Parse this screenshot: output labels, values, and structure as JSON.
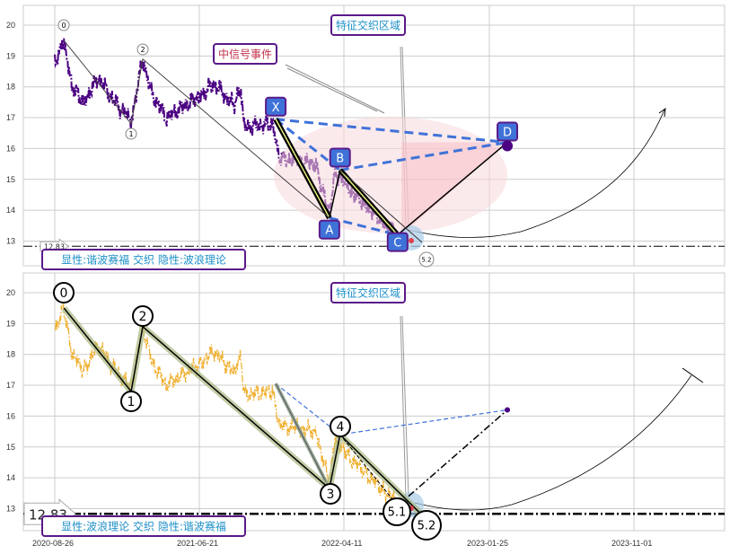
{
  "colors": {
    "top_series": "#4b0082",
    "bottom_series": "#f0b030",
    "pattern_blue": "#3f72d8",
    "label_border": "#5a1a8a",
    "label_text": "#1e90c8",
    "event_text": "#c0304a"
  },
  "chart_data": [
    {
      "type": "line",
      "panel": "top",
      "x_unit": "days since 2020-08-26",
      "ylim": [
        12.2,
        20.7
      ],
      "yticks": [
        13,
        14,
        15,
        16,
        17,
        18,
        19,
        20
      ],
      "grid": true,
      "series_waypoints": [
        [
          0,
          18.8
        ],
        [
          19,
          19.5
        ],
        [
          35,
          18.0
        ],
        [
          60,
          17.5
        ],
        [
          90,
          18.3
        ],
        [
          120,
          17.6
        ],
        [
          158,
          16.9
        ],
        [
          182,
          18.9
        ],
        [
          200,
          17.8
        ],
        [
          230,
          17.0
        ],
        [
          260,
          17.3
        ],
        [
          300,
          17.7
        ],
        [
          330,
          18.1
        ],
        [
          370,
          17.4
        ],
        [
          385,
          17.9
        ],
        [
          392,
          16.7
        ],
        [
          450,
          16.8
        ],
        [
          465,
          15.7
        ],
        [
          500,
          15.6
        ],
        [
          540,
          15.5
        ],
        [
          568,
          13.8
        ],
        [
          580,
          15.3
        ],
        [
          600,
          14.8
        ],
        [
          640,
          14.2
        ],
        [
          680,
          13.6
        ],
        [
          709,
          13.2
        ]
      ],
      "wave_points": [
        {
          "label": "0",
          "x": 19,
          "y": 19.5
        },
        {
          "label": "1",
          "x": 158,
          "y": 16.8
        },
        {
          "label": "2",
          "x": 182,
          "y": 18.9
        },
        {
          "label": "5.2",
          "x": 759,
          "y": 12.85
        }
      ],
      "harmonic_points": [
        {
          "label": "X",
          "x": 457,
          "y": 16.95
        },
        {
          "label": "A",
          "x": 568,
          "y": 13.75
        },
        {
          "label": "B",
          "x": 590,
          "y": 15.3
        },
        {
          "label": "C",
          "x": 709,
          "y": 13.2
        },
        {
          "label": "D",
          "x": 936,
          "y": 16.2
        }
      ],
      "support_level": 12.83,
      "support_label": "12.83",
      "annotations": {
        "zone": "特征交织区域",
        "event": "中信号事件",
        "legend": "显性:谐波赛福 交织 隐性:波浪理论"
      }
    },
    {
      "type": "line",
      "panel": "bottom",
      "x_unit": "days since 2020-08-26",
      "ylim": [
        12.2,
        20.7
      ],
      "yticks": [
        13,
        14,
        15,
        16,
        17,
        18,
        19,
        20
      ],
      "xticks": [
        "2020-08-26",
        "2021-06-21",
        "2022-04-11",
        "2023-01-25",
        "2023-11-01"
      ],
      "grid": true,
      "wave_points": [
        {
          "label": "0",
          "x": 19,
          "y": 19.5
        },
        {
          "label": "1",
          "x": 158,
          "y": 16.8
        },
        {
          "label": "2",
          "x": 182,
          "y": 18.9
        },
        {
          "label": "3",
          "x": 568,
          "y": 13.65
        },
        {
          "label": "4",
          "x": 590,
          "y": 15.4
        },
        {
          "label": "5.1",
          "x": 709,
          "y": 13.1
        },
        {
          "label": "5.2",
          "x": 759,
          "y": 12.8
        }
      ],
      "support_level": 12.83,
      "support_label": "12.83",
      "annotations": {
        "zone": "特征交织区域",
        "legend": "显性:波浪理论 交织 隐性:谐波赛福"
      }
    }
  ]
}
